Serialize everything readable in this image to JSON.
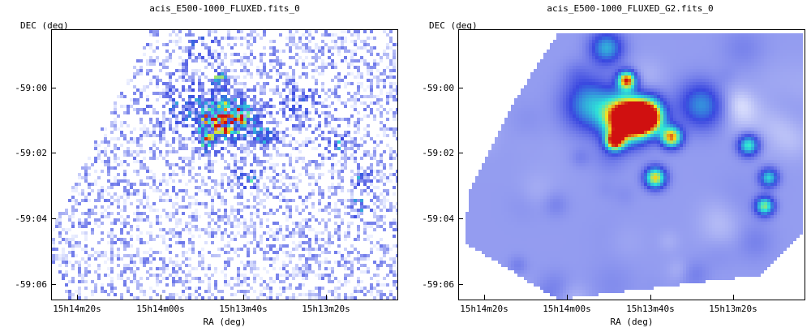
{
  "panels": [
    {
      "title": "acis_E500-1000_FLUXED.fits_0",
      "ylabel": "DEC (deg)",
      "xlabel": "RA (deg)",
      "yticks": [
        "-59:00",
        "-59:02",
        "-59:04",
        "-59:06"
      ],
      "xticks": [
        "15h14m20s",
        "15h14m00s",
        "15h13m40s",
        "15h13m20s"
      ],
      "style": "noisy pixelated heatmap"
    },
    {
      "title": "acis_E500-1000_FLUXED_G2.fits_0",
      "ylabel": "DEC (deg)",
      "xlabel": "RA (deg)",
      "yticks": [
        "-59:00",
        "-59:02",
        "-59:04",
        "-59:06"
      ],
      "xticks": [
        "15h14m20s",
        "15h14m00s",
        "15h13m40s",
        "15h13m20s"
      ],
      "style": "gaussian smoothed heatmap"
    }
  ],
  "colors": {
    "low": "#e8ecff",
    "mid": "#3a48e0",
    "high_cyan": "#2ee8d8",
    "high_yellow": "#f4e020",
    "peak": "#d01010"
  }
}
